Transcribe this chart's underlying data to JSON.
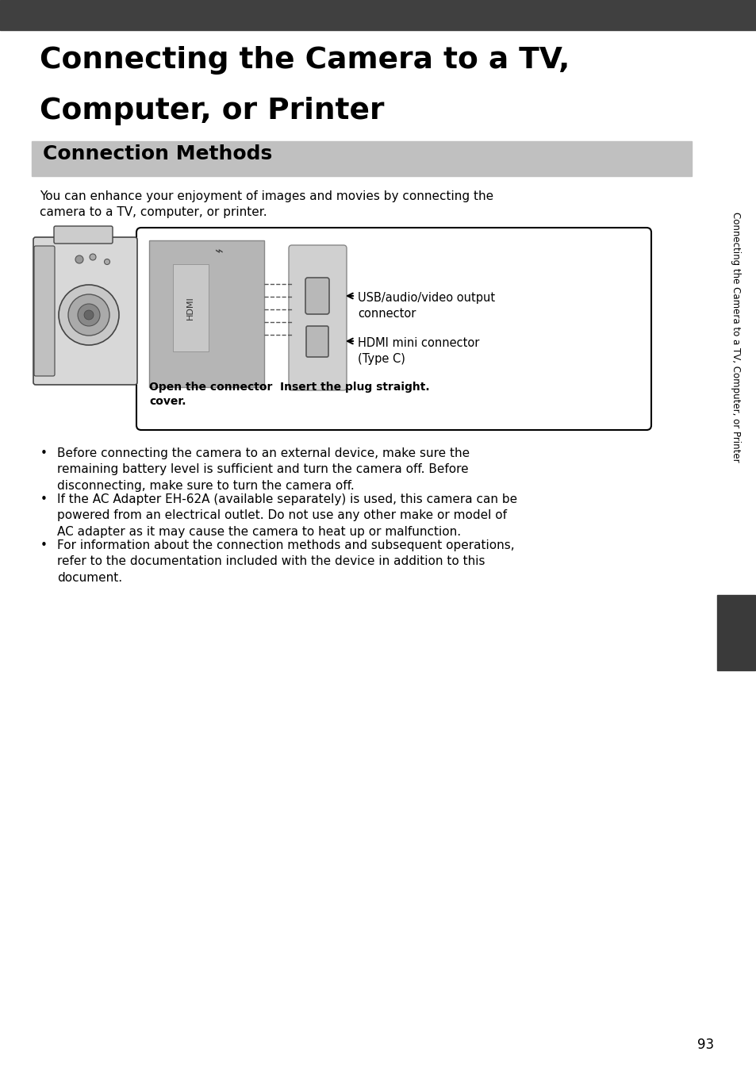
{
  "title_line1": "Connecting the Camera to a TV,",
  "title_line2": "Computer, or Printer",
  "section_title": "Connection Methods",
  "intro_line1": "You can enhance your enjoyment of images and movies by connecting the",
  "intro_line2": "camera to a TV, computer, or printer.",
  "label_usb": "USB/audio/video output\nconnector",
  "label_hdmi": "HDMI mini connector\n(Type C)",
  "caption_left1": "Open the connector",
  "caption_left2": "cover.",
  "caption_right": "Insert the plug straight.",
  "bullet1": "Before connecting the camera to an external device, make sure the\nremaining battery level is sufficient and turn the camera off. Before\ndisconnecting, make sure to turn the camera off.",
  "bullet2": "If the AC Adapter EH-62A (available separately) is used, this camera can be\npowered from an electrical outlet. Do not use any other make or model of\nAC adapter as it may cause the camera to heat up or malfunction.",
  "bullet3": "For information about the connection methods and subsequent operations,\nrefer to the documentation included with the device in addition to this\ndocument.",
  "sidebar_text": "Connecting the Camera to a TV, Computer, or Printer",
  "page_number": "93",
  "header_bg": "#404040",
  "section_bg": "#c0c0c0",
  "sidebar_text_color": "#000000",
  "page_bg": "#ffffff"
}
